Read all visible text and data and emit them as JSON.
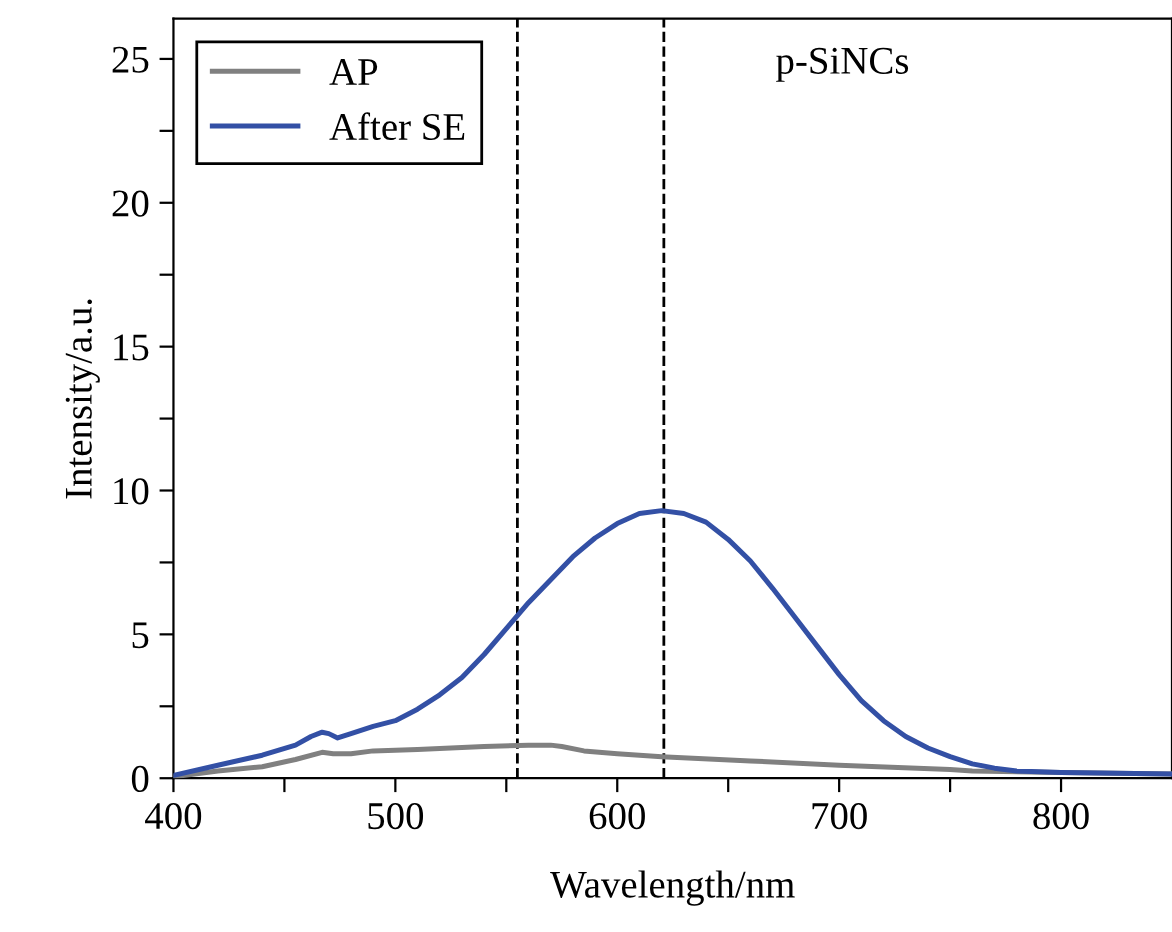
{
  "chart_data": {
    "type": "line",
    "xlabel": "Wavelength/nm",
    "ylabel": "Intensity/a.u.",
    "annotations": [
      "p-SiNCs"
    ],
    "xlim": [
      400,
      850
    ],
    "ylim": [
      0,
      26.4
    ],
    "xticks": [
      400,
      {
        "value": 450,
        "label": null
      },
      500,
      {
        "value": 550,
        "label": null
      },
      600,
      {
        "value": 650,
        "label": null
      },
      700,
      {
        "value": 750,
        "label": null
      },
      800
    ],
    "yticks": [
      0,
      {
        "value": 2.5,
        "label": null
      },
      5,
      {
        "value": 7.5,
        "label": null
      },
      10,
      {
        "value": 12.5,
        "label": null
      },
      15,
      {
        "value": 17.5,
        "label": null
      },
      20,
      {
        "value": 22.5,
        "label": null
      },
      25
    ],
    "ref_lines": [
      {
        "axis": "x",
        "value": 555,
        "color": "#000000",
        "line_style": "dashed"
      },
      {
        "axis": "x",
        "value": 621,
        "color": "#000000",
        "line_style": "dashed"
      }
    ],
    "legend": "top left",
    "grid": false,
    "marker": "none",
    "line_style": "solid",
    "series": [
      {
        "name": "AP",
        "color": "#808080",
        "x": [
          400,
          420,
          440,
          455,
          467,
          472,
          480,
          490,
          510,
          540,
          560,
          570,
          575,
          585,
          600,
          620,
          660,
          700,
          750,
          760,
          800,
          850
        ],
        "values": [
          0.05,
          0.25,
          0.4,
          0.65,
          0.9,
          0.85,
          0.85,
          0.95,
          1.0,
          1.1,
          1.15,
          1.15,
          1.1,
          0.95,
          0.85,
          0.75,
          0.6,
          0.45,
          0.3,
          0.25,
          0.2,
          0.15
        ]
      },
      {
        "name": "After SE",
        "color": "#3350a5",
        "x": [
          400,
          420,
          440,
          455,
          462,
          467,
          470,
          474,
          480,
          490,
          500,
          510,
          520,
          530,
          540,
          550,
          560,
          570,
          580,
          590,
          600,
          610,
          620,
          630,
          640,
          650,
          660,
          670,
          680,
          690,
          700,
          710,
          720,
          730,
          740,
          750,
          760,
          770,
          780,
          800,
          850
        ],
        "values": [
          0.1,
          0.45,
          0.8,
          1.15,
          1.45,
          1.6,
          1.55,
          1.4,
          1.55,
          1.8,
          2.0,
          2.4,
          2.9,
          3.5,
          4.3,
          5.2,
          6.1,
          6.9,
          7.7,
          8.35,
          8.85,
          9.2,
          9.3,
          9.2,
          8.9,
          8.3,
          7.55,
          6.6,
          5.6,
          4.6,
          3.6,
          2.7,
          2.0,
          1.45,
          1.05,
          0.75,
          0.5,
          0.35,
          0.25,
          0.2,
          0.15
        ]
      }
    ]
  }
}
